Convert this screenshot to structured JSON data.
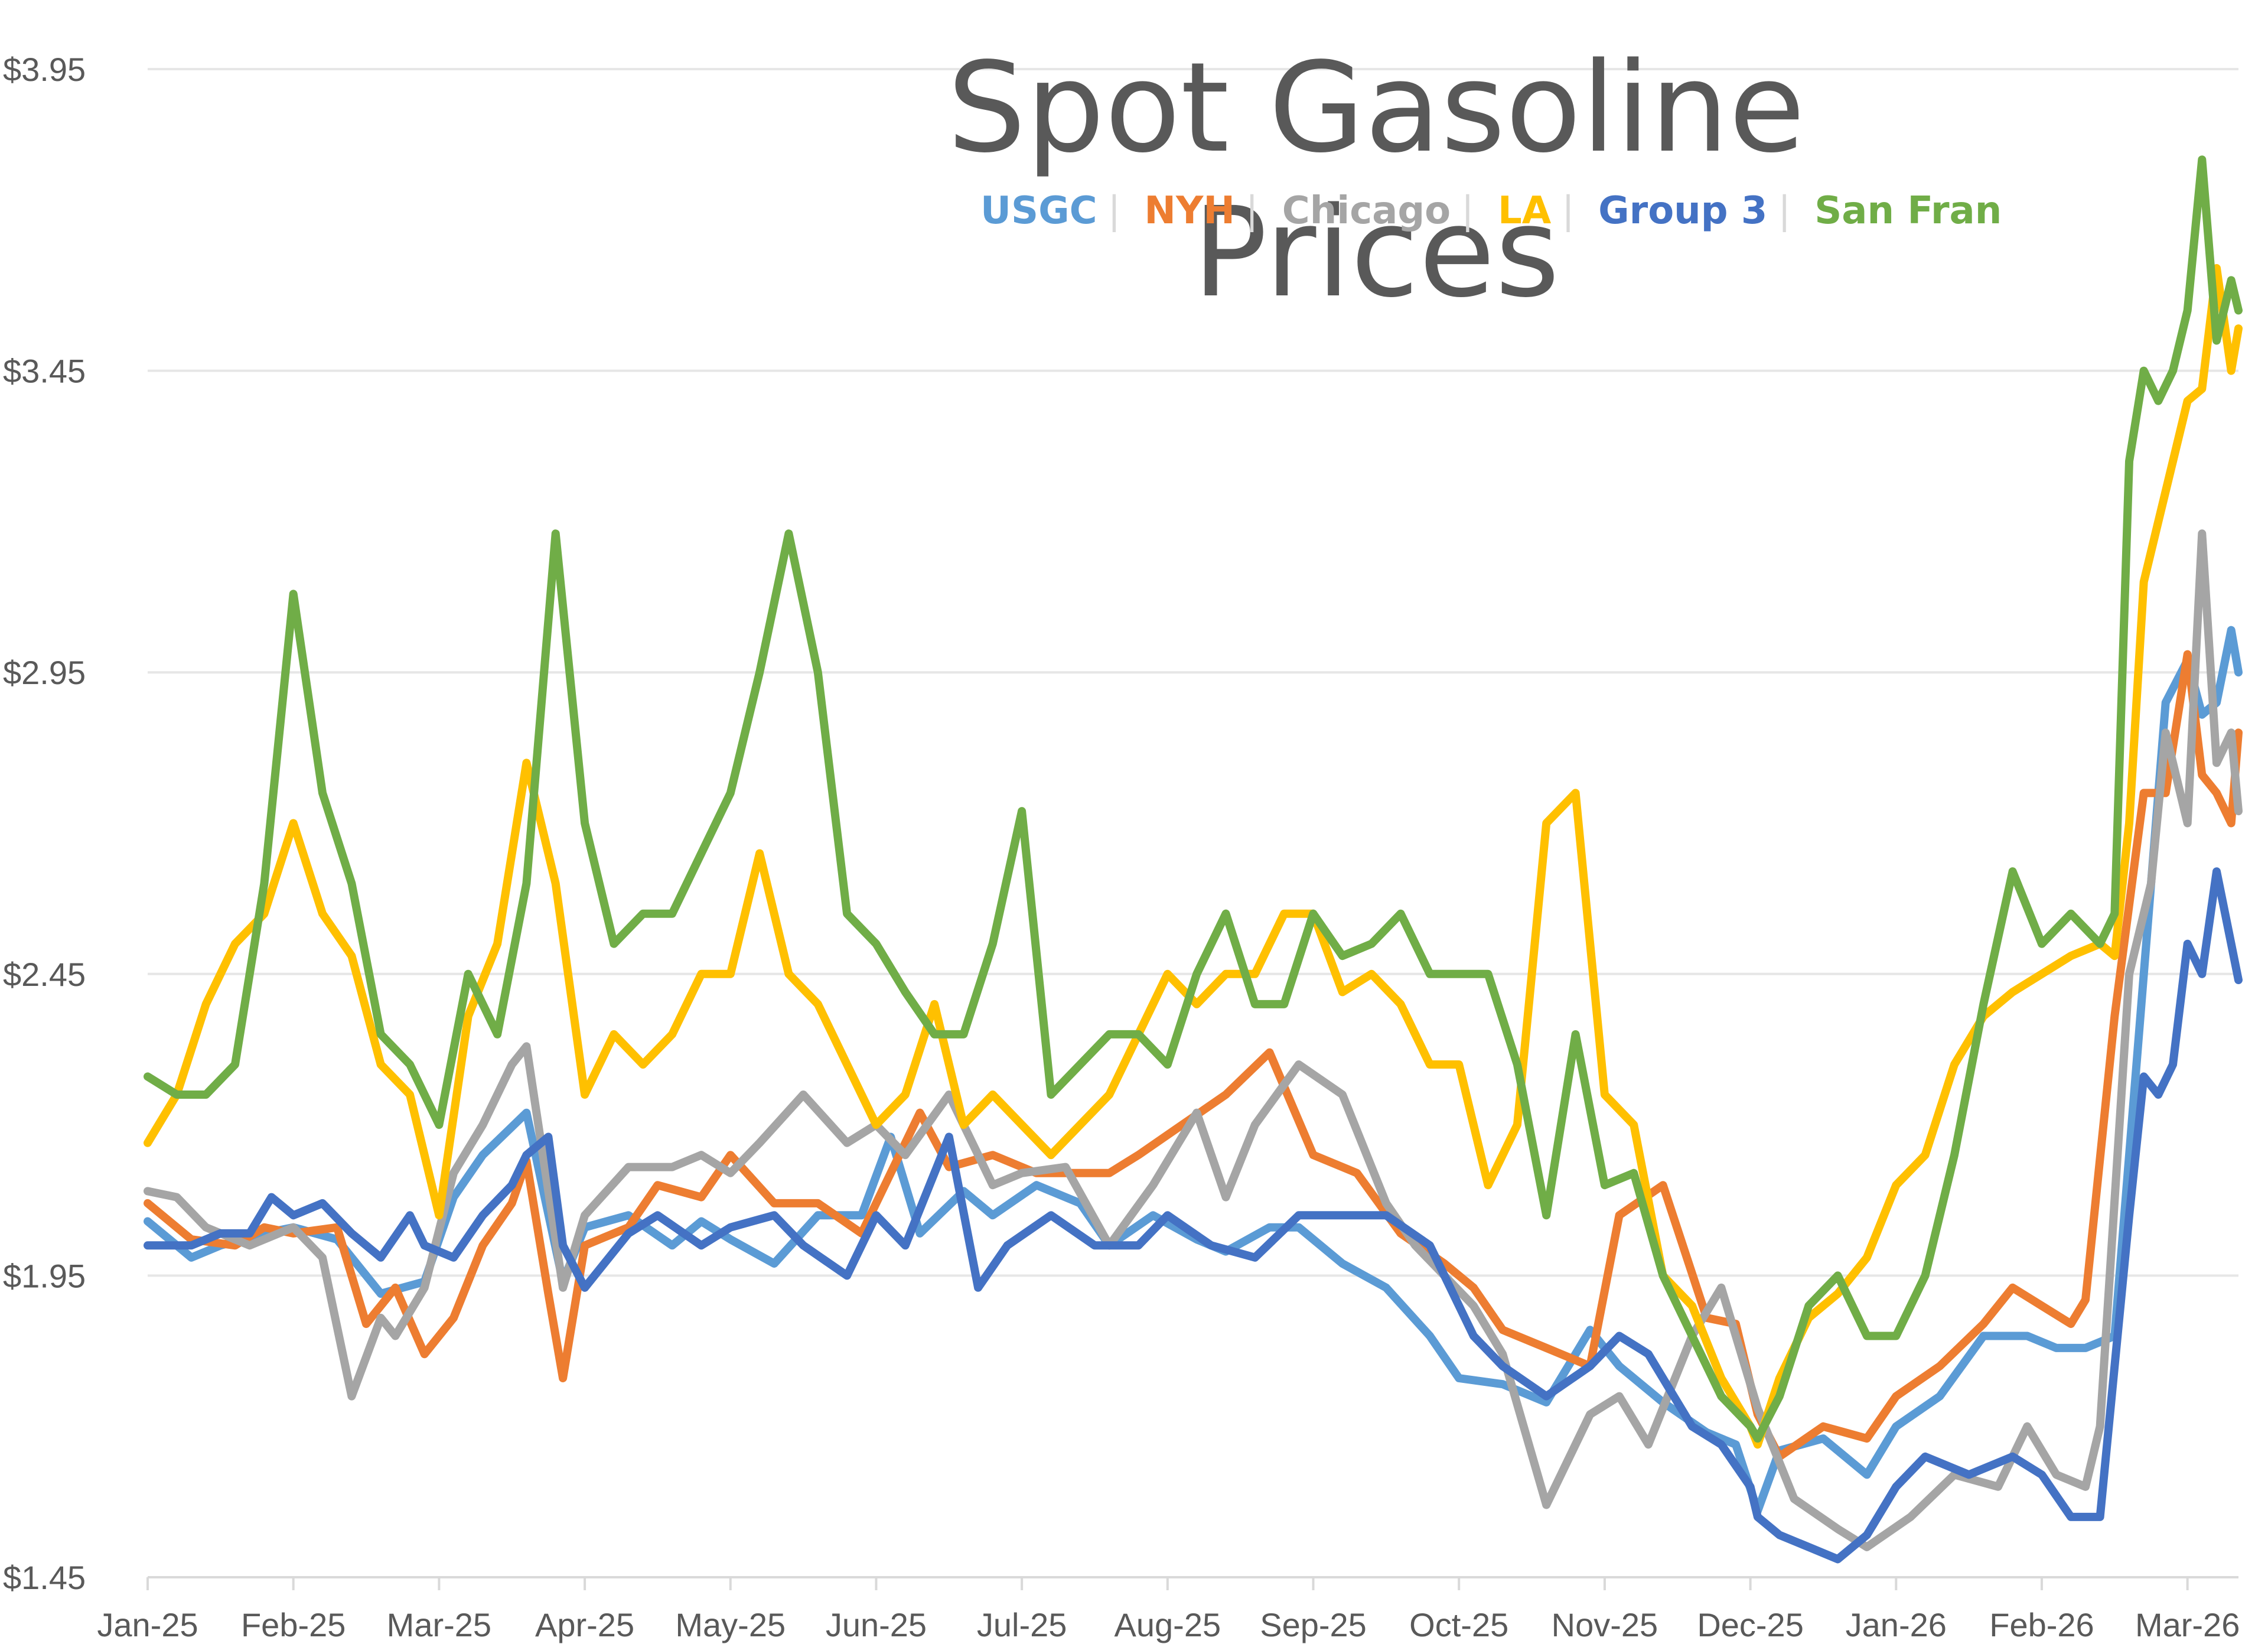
{
  "chart_data": {
    "type": "line",
    "title": "Spot Gasoline Prices",
    "xlabel": "",
    "ylabel": "",
    "ylim": [
      1.45,
      3.95
    ],
    "y_ticks": [
      "$1.45",
      "$1.95",
      "$2.45",
      "$2.95",
      "$3.45",
      "$3.95"
    ],
    "y_tick_values": [
      1.45,
      1.95,
      2.45,
      2.95,
      3.45,
      3.95
    ],
    "x_range": [
      0,
      14.35
    ],
    "x_ticks": [
      "Jan-25",
      "Feb-25",
      "Mar-25",
      "Apr-25",
      "May-25",
      "Jun-25",
      "Jul-25",
      "Aug-25",
      "Sep-25",
      "Oct-25",
      "Nov-25",
      "Dec-25",
      "Jan-26",
      "Feb-26",
      "Mar-26"
    ],
    "grid": true,
    "legend_position": "top-right",
    "series": [
      {
        "name": "USGC",
        "color": "#5b9bd5",
        "x": [
          0,
          0.3,
          0.5,
          0.8,
          1.0,
          1.3,
          1.6,
          1.9,
          2.1,
          2.3,
          2.6,
          2.85,
          3.0,
          3.3,
          3.6,
          3.8,
          4.0,
          4.3,
          4.6,
          4.9,
          5.1,
          5.3,
          5.6,
          5.8,
          6.1,
          6.4,
          6.6,
          6.9,
          7.2,
          7.4,
          7.7,
          7.9,
          8.2,
          8.5,
          8.8,
          9.0,
          9.3,
          9.6,
          9.9,
          10.1,
          10.4,
          10.7,
          10.9,
          11.05,
          11.2,
          11.5,
          11.8,
          12.0,
          12.3,
          12.6,
          12.9,
          13.1,
          13.3,
          13.5,
          13.7,
          13.85,
          14.0,
          14.1,
          14.2,
          14.3,
          14.35
        ],
        "y": [
          2.04,
          1.98,
          2.0,
          2.02,
          2.03,
          2.01,
          1.92,
          1.94,
          2.08,
          2.15,
          2.22,
          1.94,
          2.03,
          2.05,
          2.0,
          2.04,
          2.01,
          1.97,
          2.05,
          2.05,
          2.18,
          2.02,
          2.09,
          2.05,
          2.1,
          2.07,
          2.0,
          2.05,
          2.01,
          1.99,
          2.03,
          2.03,
          1.97,
          1.93,
          1.85,
          1.78,
          1.77,
          1.74,
          1.86,
          1.8,
          1.74,
          1.69,
          1.67,
          1.56,
          1.66,
          1.68,
          1.62,
          1.7,
          1.75,
          1.85,
          1.85,
          1.83,
          1.83,
          1.85,
          2.45,
          2.9,
          2.97,
          2.88,
          2.9,
          3.02,
          2.95
        ]
      },
      {
        "name": "NYH",
        "color": "#ed7d31",
        "x": [
          0,
          0.3,
          0.6,
          0.8,
          1.0,
          1.3,
          1.5,
          1.7,
          1.9,
          2.1,
          2.3,
          2.5,
          2.6,
          2.75,
          2.85,
          3.0,
          3.3,
          3.5,
          3.8,
          4.0,
          4.3,
          4.6,
          4.9,
          5.1,
          5.3,
          5.5,
          5.8,
          6.1,
          6.4,
          6.6,
          6.8,
          7.1,
          7.4,
          7.7,
          8.0,
          8.3,
          8.6,
          8.9,
          9.1,
          9.3,
          9.6,
          9.9,
          10.1,
          10.4,
          10.7,
          10.9,
          11.05,
          11.2,
          11.5,
          11.8,
          12.0,
          12.3,
          12.6,
          12.8,
          13.0,
          13.2,
          13.3,
          13.5,
          13.7,
          13.85,
          14.0,
          14.1,
          14.2,
          14.3,
          14.35
        ],
        "y": [
          2.07,
          2.01,
          2.0,
          2.03,
          2.02,
          2.03,
          1.87,
          1.93,
          1.82,
          1.88,
          2.0,
          2.07,
          2.14,
          1.92,
          1.78,
          2.0,
          2.03,
          2.1,
          2.08,
          2.15,
          2.07,
          2.07,
          2.02,
          2.12,
          2.22,
          2.13,
          2.15,
          2.12,
          2.12,
          2.12,
          2.15,
          2.2,
          2.25,
          2.32,
          2.15,
          2.12,
          2.02,
          1.97,
          1.93,
          1.86,
          1.83,
          1.8,
          2.05,
          2.1,
          1.88,
          1.87,
          1.72,
          1.65,
          1.7,
          1.68,
          1.75,
          1.8,
          1.87,
          1.93,
          1.9,
          1.87,
          1.91,
          2.38,
          2.75,
          2.75,
          2.98,
          2.78,
          2.75,
          2.7,
          2.85
        ]
      },
      {
        "name": "Chicago",
        "color": "#a5a5a5",
        "x": [
          0,
          0.2,
          0.4,
          0.7,
          1.0,
          1.2,
          1.4,
          1.6,
          1.7,
          1.9,
          2.1,
          2.3,
          2.5,
          2.6,
          2.85,
          3.0,
          3.3,
          3.6,
          3.8,
          4.0,
          4.2,
          4.5,
          4.8,
          5.0,
          5.2,
          5.5,
          5.8,
          6.0,
          6.3,
          6.6,
          6.9,
          7.2,
          7.4,
          7.6,
          7.9,
          8.2,
          8.5,
          8.7,
          8.9,
          9.1,
          9.3,
          9.6,
          9.9,
          10.1,
          10.3,
          10.6,
          10.8,
          11.05,
          11.3,
          11.6,
          11.8,
          12.1,
          12.4,
          12.7,
          12.9,
          13.1,
          13.3,
          13.4,
          13.6,
          13.75,
          13.85,
          14.0,
          14.1,
          14.2,
          14.3,
          14.35
        ],
        "y": [
          2.09,
          2.08,
          2.03,
          2.0,
          2.03,
          1.98,
          1.75,
          1.88,
          1.85,
          1.93,
          2.12,
          2.2,
          2.3,
          2.33,
          1.93,
          2.05,
          2.13,
          2.13,
          2.15,
          2.12,
          2.17,
          2.25,
          2.17,
          2.2,
          2.15,
          2.25,
          2.1,
          2.12,
          2.13,
          2.0,
          2.1,
          2.22,
          2.08,
          2.2,
          2.3,
          2.25,
          2.07,
          2.0,
          1.95,
          1.9,
          1.82,
          1.57,
          1.72,
          1.75,
          1.67,
          1.85,
          1.93,
          1.73,
          1.58,
          1.53,
          1.5,
          1.55,
          1.62,
          1.6,
          1.7,
          1.62,
          1.6,
          1.7,
          2.45,
          2.6,
          2.85,
          2.7,
          3.18,
          2.8,
          2.85,
          2.72
        ]
      },
      {
        "name": "LA",
        "color": "#ffc000",
        "x": [
          0,
          0.2,
          0.4,
          0.6,
          0.8,
          1.0,
          1.2,
          1.4,
          1.6,
          1.8,
          2.0,
          2.2,
          2.4,
          2.6,
          2.8,
          3.0,
          3.2,
          3.4,
          3.6,
          3.8,
          4.0,
          4.2,
          4.4,
          4.6,
          4.8,
          5.0,
          5.2,
          5.4,
          5.6,
          5.8,
          6.0,
          6.2,
          6.4,
          6.6,
          6.8,
          7.0,
          7.2,
          7.4,
          7.6,
          7.8,
          8.0,
          8.2,
          8.4,
          8.6,
          8.8,
          9.0,
          9.2,
          9.4,
          9.6,
          9.8,
          10.0,
          10.2,
          10.4,
          10.6,
          10.8,
          11.0,
          11.05,
          11.2,
          11.4,
          11.6,
          11.8,
          12.0,
          12.2,
          12.4,
          12.6,
          12.8,
          13.0,
          13.2,
          13.4,
          13.5,
          13.6,
          13.7,
          13.8,
          13.9,
          14.0,
          14.1,
          14.2,
          14.3,
          14.35
        ],
        "y": [
          2.17,
          2.25,
          2.4,
          2.5,
          2.55,
          2.7,
          2.55,
          2.48,
          2.3,
          2.25,
          2.05,
          2.38,
          2.5,
          2.8,
          2.6,
          2.25,
          2.35,
          2.3,
          2.35,
          2.45,
          2.45,
          2.65,
          2.45,
          2.4,
          2.3,
          2.2,
          2.25,
          2.4,
          2.2,
          2.25,
          2.2,
          2.15,
          2.2,
          2.25,
          2.35,
          2.45,
          2.4,
          2.45,
          2.45,
          2.55,
          2.55,
          2.42,
          2.45,
          2.4,
          2.3,
          2.3,
          2.1,
          2.2,
          2.7,
          2.75,
          2.25,
          2.2,
          1.95,
          1.9,
          1.78,
          1.7,
          1.67,
          1.78,
          1.88,
          1.92,
          1.98,
          2.1,
          2.15,
          2.3,
          2.38,
          2.42,
          2.45,
          2.48,
          2.5,
          2.48,
          2.7,
          3.1,
          3.2,
          3.3,
          3.4,
          3.42,
          3.62,
          3.45,
          3.52
        ]
      },
      {
        "name": "Group 3",
        "color": "#4472c4",
        "x": [
          0,
          0.3,
          0.5,
          0.7,
          0.85,
          1.0,
          1.2,
          1.4,
          1.6,
          1.8,
          1.9,
          2.1,
          2.3,
          2.5,
          2.6,
          2.75,
          2.85,
          3.0,
          3.3,
          3.5,
          3.8,
          4.0,
          4.3,
          4.5,
          4.8,
          5.0,
          5.2,
          5.5,
          5.7,
          5.9,
          6.2,
          6.5,
          6.8,
          7.0,
          7.3,
          7.6,
          7.9,
          8.2,
          8.5,
          8.8,
          9.1,
          9.3,
          9.6,
          9.9,
          10.1,
          10.3,
          10.6,
          10.8,
          11.0,
          11.05,
          11.2,
          11.4,
          11.6,
          11.8,
          12.0,
          12.2,
          12.5,
          12.8,
          13.0,
          13.2,
          13.4,
          13.5,
          13.6,
          13.7,
          13.8,
          13.9,
          14.0,
          14.1,
          14.2,
          14.3,
          14.35
        ],
        "y": [
          2.0,
          2.0,
          2.02,
          2.02,
          2.08,
          2.05,
          2.07,
          2.02,
          1.98,
          2.05,
          2.0,
          1.98,
          2.05,
          2.1,
          2.15,
          2.18,
          2.0,
          1.93,
          2.02,
          2.05,
          2.0,
          2.03,
          2.05,
          2.0,
          1.95,
          2.05,
          2.0,
          2.18,
          1.93,
          2.0,
          2.05,
          2.0,
          2.0,
          2.05,
          2.0,
          1.98,
          2.05,
          2.05,
          2.05,
          2.0,
          1.85,
          1.8,
          1.75,
          1.8,
          1.85,
          1.82,
          1.7,
          1.67,
          1.6,
          1.55,
          1.52,
          1.5,
          1.48,
          1.52,
          1.6,
          1.65,
          1.62,
          1.65,
          1.62,
          1.55,
          1.55,
          1.8,
          2.05,
          2.28,
          2.25,
          2.3,
          2.5,
          2.45,
          2.62,
          2.5,
          2.44
        ]
      },
      {
        "name": "San Fran",
        "color": "#70ad47",
        "x": [
          0,
          0.2,
          0.4,
          0.6,
          0.8,
          1.0,
          1.2,
          1.4,
          1.6,
          1.8,
          2.0,
          2.2,
          2.4,
          2.6,
          2.8,
          3.0,
          3.2,
          3.4,
          3.6,
          3.8,
          4.0,
          4.2,
          4.4,
          4.6,
          4.8,
          5.0,
          5.2,
          5.4,
          5.6,
          5.8,
          6.0,
          6.2,
          6.4,
          6.6,
          6.8,
          7.0,
          7.2,
          7.4,
          7.6,
          7.8,
          8.0,
          8.2,
          8.4,
          8.6,
          8.8,
          9.0,
          9.2,
          9.4,
          9.6,
          9.8,
          10.0,
          10.2,
          10.4,
          10.6,
          10.8,
          11.0,
          11.05,
          11.2,
          11.4,
          11.6,
          11.8,
          12.0,
          12.2,
          12.4,
          12.6,
          12.8,
          13.0,
          13.2,
          13.4,
          13.5,
          13.6,
          13.7,
          13.8,
          13.9,
          14.0,
          14.1,
          14.2,
          14.3,
          14.35
        ],
        "y": [
          2.28,
          2.25,
          2.25,
          2.3,
          2.6,
          3.08,
          2.75,
          2.6,
          2.35,
          2.3,
          2.2,
          2.45,
          2.35,
          2.6,
          3.18,
          2.7,
          2.5,
          2.55,
          2.55,
          2.65,
          2.75,
          2.95,
          3.18,
          2.95,
          2.55,
          2.5,
          2.42,
          2.35,
          2.35,
          2.5,
          2.72,
          2.25,
          2.3,
          2.35,
          2.35,
          2.3,
          2.45,
          2.55,
          2.4,
          2.4,
          2.55,
          2.48,
          2.5,
          2.55,
          2.45,
          2.45,
          2.45,
          2.3,
          2.05,
          2.35,
          2.1,
          2.12,
          1.95,
          1.85,
          1.75,
          1.7,
          1.68,
          1.75,
          1.9,
          1.95,
          1.85,
          1.85,
          1.95,
          2.15,
          2.4,
          2.62,
          2.5,
          2.55,
          2.5,
          2.55,
          3.3,
          3.45,
          3.4,
          3.45,
          3.55,
          3.8,
          3.5,
          3.6,
          3.55
        ]
      }
    ]
  }
}
